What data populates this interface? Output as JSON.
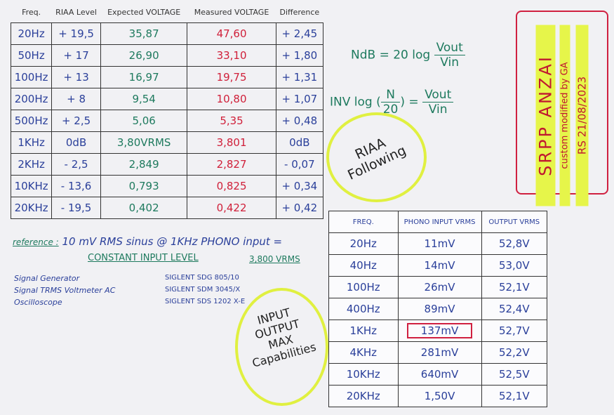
{
  "table1": {
    "headers": [
      "Freq.",
      "RIAA Level",
      "Expected VOLTAGE",
      "Measured VOLTAGE",
      "Difference"
    ],
    "rows": [
      [
        "20Hz",
        "+ 19,5",
        "35,87",
        "47,60",
        "+ 2,45"
      ],
      [
        "50Hz",
        "+ 17",
        "26,90",
        "33,10",
        "+ 1,80"
      ],
      [
        "100Hz",
        "+ 13",
        "16,97",
        "19,75",
        "+ 1,31"
      ],
      [
        "200Hz",
        "+ 8",
        "9,54",
        "10,80",
        "+ 1,07"
      ],
      [
        "500Hz",
        "+ 2,5",
        "5,06",
        "5,35",
        "+ 0,48"
      ],
      [
        "1KHz",
        "0dB",
        "3,80VRMS",
        "3,801",
        "0dB"
      ],
      [
        "2KHz",
        "- 2,5",
        "2,849",
        "2,827",
        "- 0,07"
      ],
      [
        "10KHz",
        "- 13,6",
        "0,793",
        "0,825",
        "+ 0,34"
      ],
      [
        "20KHz",
        "- 19,5",
        "0,402",
        "0,422",
        "+ 0,42"
      ]
    ]
  },
  "formula1": {
    "lhs": "NdB = 20 log",
    "num": "Vout",
    "den": "Vin"
  },
  "formula2": {
    "lhs": "INV log",
    "num": "N",
    "den": "20",
    "eq": "=",
    "num2": "Vout",
    "den2": "Vin"
  },
  "circle1": {
    "text": "RIAA Following"
  },
  "signature": {
    "title": "SRPP ANZAI",
    "line1": "custom modified by GA",
    "line2": "RS 21/08/2023"
  },
  "reference": {
    "label": "reference :",
    "text": "10 mV RMS sinus @ 1KHz PHONO input =",
    "constant": "CONSTANT INPUT LEVEL",
    "value": "3,800 VRMS"
  },
  "equipment": [
    [
      "Signal Generator",
      "SIGLENT SDG 805/10"
    ],
    [
      "Signal TRMS Voltmeter AC",
      "SIGLENT SDM 3045/X"
    ],
    [
      "Oscilloscope",
      "SIGLENT SDS 1202 X-E"
    ]
  ],
  "circle2": {
    "text": "INPUT OUTPUT MAX Capabilities"
  },
  "table2": {
    "headers": [
      "FREQ.",
      "PHONO INPUT VRMS",
      "OUTPUT VRMS"
    ],
    "rows": [
      [
        "20Hz",
        "11mV",
        "52,8V"
      ],
      [
        "40Hz",
        "14mV",
        "53,0V"
      ],
      [
        "100Hz",
        "26mV",
        "52,1V"
      ],
      [
        "400Hz",
        "89mV",
        "52,4V"
      ],
      [
        "1KHz",
        "137mV",
        "52,7V"
      ],
      [
        "4KHz",
        "281mV",
        "52,2V"
      ],
      [
        "10KHz",
        "640mV",
        "52,5V"
      ],
      [
        "20KHz",
        "1,50V",
        "52,1V"
      ]
    ]
  }
}
